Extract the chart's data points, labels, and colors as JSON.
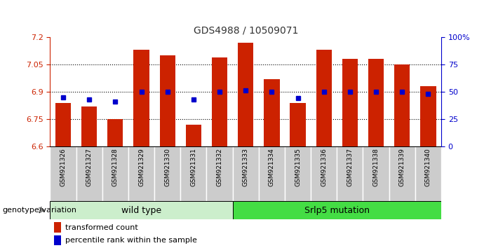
{
  "title": "GDS4988 / 10509071",
  "samples": [
    "GSM921326",
    "GSM921327",
    "GSM921328",
    "GSM921329",
    "GSM921330",
    "GSM921331",
    "GSM921332",
    "GSM921333",
    "GSM921334",
    "GSM921335",
    "GSM921336",
    "GSM921337",
    "GSM921338",
    "GSM921339",
    "GSM921340"
  ],
  "transformed_count": [
    6.84,
    6.82,
    6.75,
    7.13,
    7.1,
    6.72,
    7.09,
    7.17,
    6.97,
    6.84,
    7.13,
    7.08,
    7.08,
    7.05,
    6.93
  ],
  "percentile_rank": [
    45,
    43,
    41,
    50,
    50,
    43,
    50,
    51,
    50,
    44,
    50,
    50,
    50,
    50,
    48
  ],
  "ylim": [
    6.6,
    7.2
  ],
  "yticks": [
    6.6,
    6.75,
    6.9,
    7.05,
    7.2
  ],
  "ytick_labels": [
    "6.6",
    "6.75",
    "6.9",
    "7.05",
    "7.2"
  ],
  "right_yticks": [
    0,
    25,
    50,
    75,
    100
  ],
  "right_ytick_labels": [
    "0",
    "25",
    "50",
    "75",
    "100%"
  ],
  "grid_lines": [
    7.05,
    6.9,
    6.75
  ],
  "bar_color": "#cc2200",
  "marker_color": "#0000cc",
  "bar_width": 0.6,
  "wild_type_count": 7,
  "wild_type_label": "wild type",
  "mutation_label": "Srlp5 mutation",
  "genotype_label": "genotype/variation",
  "legend_bar_label": "transformed count",
  "legend_marker_label": "percentile rank within the sample",
  "wild_type_color": "#cceecc",
  "mutation_color": "#44dd44",
  "left_axis_color": "#cc2200",
  "right_axis_color": "#0000cc",
  "title_color": "#333333",
  "tick_bg_color": "#cccccc",
  "arrow_color": "#888888"
}
